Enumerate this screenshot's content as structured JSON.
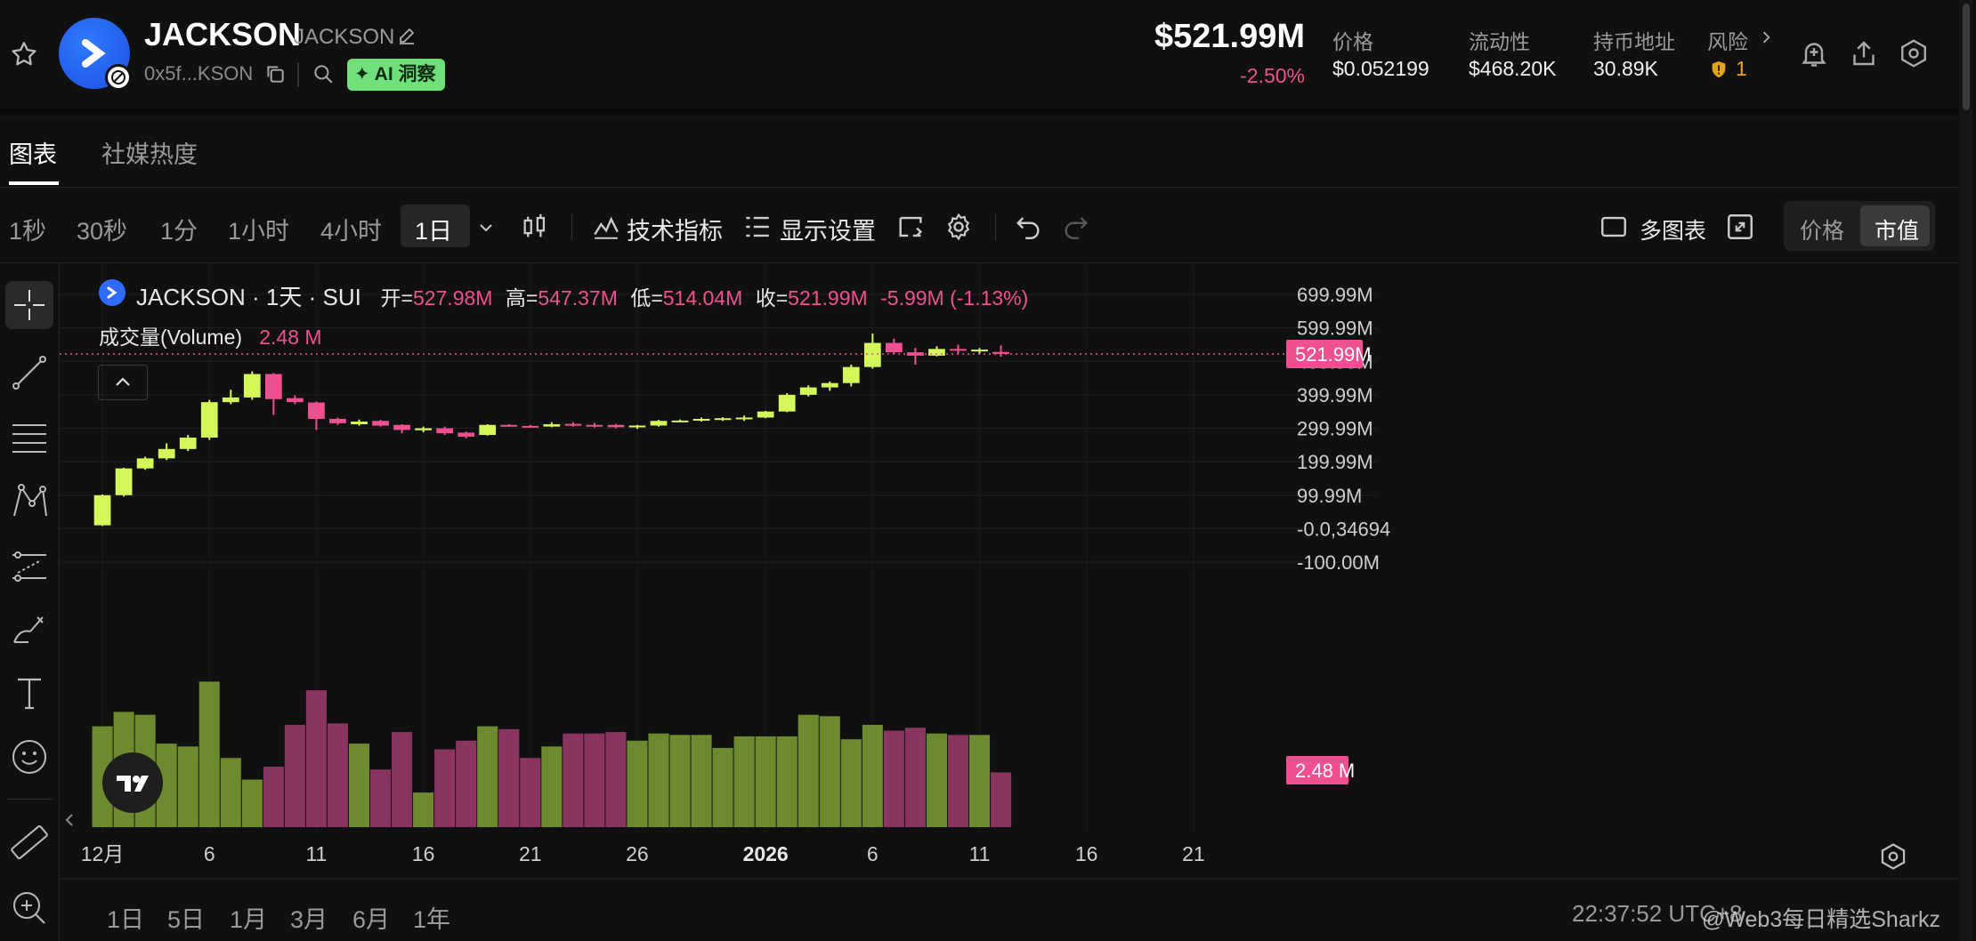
{
  "header": {
    "token_name": "JACKSON",
    "token_ticker": "JACKSON",
    "address": "0x5f...KSON",
    "ai_badge": "AI 洞察",
    "market_cap": "$521.99M",
    "market_cap_change": "-2.50%",
    "stats": [
      {
        "label": "价格",
        "value": "$0.052199"
      },
      {
        "label": "流动性",
        "value": "$468.20K"
      },
      {
        "label": "持币地址",
        "value": "30.89K"
      },
      {
        "label": "风险",
        "value": "1"
      }
    ]
  },
  "tabs": [
    {
      "label": "图表",
      "active": true
    },
    {
      "label": "社媒热度",
      "active": false
    }
  ],
  "toolbar": {
    "timeframes": [
      {
        "label": "1秒"
      },
      {
        "label": "30秒"
      },
      {
        "label": "1分"
      },
      {
        "label": "1小时"
      },
      {
        "label": "4小时"
      },
      {
        "label": "1日",
        "active": true
      }
    ],
    "indicators_label": "技术指标",
    "display_label": "显示设置",
    "multi_chart_label": "多图表",
    "price_toggle": "价格",
    "mcap_toggle": "市值"
  },
  "legend": {
    "title": "JACKSON · 1天 · SUI",
    "open_label": "开=",
    "open": "527.98M",
    "high_label": "高=",
    "high": "547.37M",
    "low_label": "低=",
    "low": "514.04M",
    "close_label": "收=",
    "close": "521.99M",
    "change": "-5.99M (-1.13%)",
    "volume_label": "成交量(Volume)",
    "volume": "2.48 M"
  },
  "colors": {
    "up": "#d4f75a",
    "down": "#f0508f",
    "vol_up": "#6e8a2e",
    "vol_down": "#8a3560"
  },
  "chart_data": {
    "type": "candlestick",
    "y_unit": "M",
    "ylim": [
      -120,
      760
    ],
    "y_ticks": [
      {
        "value": 699.99,
        "label": "699.99M"
      },
      {
        "value": 599.99,
        "label": "599.99M"
      },
      {
        "value": 499.99,
        "label": "499.99M"
      },
      {
        "value": 399.99,
        "label": "399.99M"
      },
      {
        "value": 299.99,
        "label": "299.99M"
      },
      {
        "value": 199.99,
        "label": "199.99M"
      },
      {
        "value": 99.99,
        "label": "99.99M"
      },
      {
        "value": -0.0,
        "label": "-0.0,34694"
      },
      {
        "value": -100,
        "label": "-100.00M"
      }
    ],
    "x_ticks": [
      {
        "day": 1,
        "label": "12月",
        "bold": false
      },
      {
        "day": 6,
        "label": "6",
        "bold": false
      },
      {
        "day": 11,
        "label": "11",
        "bold": false
      },
      {
        "day": 16,
        "label": "16",
        "bold": false
      },
      {
        "day": 21,
        "label": "21",
        "bold": false
      },
      {
        "day": 26,
        "label": "26",
        "bold": false
      },
      {
        "day": 32,
        "label": "2026",
        "bold": true
      },
      {
        "day": 37,
        "label": "6",
        "bold": false
      },
      {
        "day": 42,
        "label": "11",
        "bold": false
      },
      {
        "day": 47,
        "label": "16",
        "bold": false
      },
      {
        "day": 52,
        "label": "21",
        "bold": false
      }
    ],
    "x_range": [
      -1.0,
      56.0
    ],
    "last_price": 521.99,
    "last_price_label": "521.99M",
    "volume_label": "2.48 M",
    "volume_max": 100,
    "candles": [
      {
        "day": 1,
        "o": 10,
        "h": 102,
        "l": 8,
        "c": 100,
        "v": 70
      },
      {
        "day": 2,
        "o": 100,
        "h": 182,
        "l": 96,
        "c": 180,
        "v": 80
      },
      {
        "day": 3,
        "o": 180,
        "h": 215,
        "l": 176,
        "c": 210,
        "v": 78
      },
      {
        "day": 4,
        "o": 210,
        "h": 255,
        "l": 205,
        "c": 238,
        "v": 58
      },
      {
        "day": 5,
        "o": 238,
        "h": 280,
        "l": 232,
        "c": 272,
        "v": 56
      },
      {
        "day": 6,
        "o": 272,
        "h": 385,
        "l": 265,
        "c": 378,
        "v": 101
      },
      {
        "day": 7,
        "o": 378,
        "h": 415,
        "l": 372,
        "c": 392,
        "v": 48
      },
      {
        "day": 8,
        "o": 392,
        "h": 470,
        "l": 385,
        "c": 462,
        "v": 33
      },
      {
        "day": 9,
        "o": 462,
        "h": 465,
        "l": 340,
        "c": 387,
        "v": 42
      },
      {
        "day": 10,
        "o": 390,
        "h": 398,
        "l": 372,
        "c": 378,
        "v": 71
      },
      {
        "day": 11,
        "o": 377,
        "h": 380,
        "l": 295,
        "c": 328,
        "v": 95
      },
      {
        "day": 12,
        "o": 328,
        "h": 332,
        "l": 310,
        "c": 315,
        "v": 72
      },
      {
        "day": 13,
        "o": 312,
        "h": 326,
        "l": 308,
        "c": 320,
        "v": 58
      },
      {
        "day": 14,
        "o": 322,
        "h": 325,
        "l": 305,
        "c": 308,
        "v": 40
      },
      {
        "day": 15,
        "o": 310,
        "h": 312,
        "l": 285,
        "c": 295,
        "v": 66
      },
      {
        "day": 16,
        "o": 294,
        "h": 305,
        "l": 288,
        "c": 300,
        "v": 24
      },
      {
        "day": 17,
        "o": 300,
        "h": 305,
        "l": 280,
        "c": 285,
        "v": 54
      },
      {
        "day": 18,
        "o": 287,
        "h": 290,
        "l": 270,
        "c": 275,
        "v": 60
      },
      {
        "day": 19,
        "o": 280,
        "h": 312,
        "l": 278,
        "c": 310,
        "v": 70
      },
      {
        "day": 20,
        "o": 310,
        "h": 312,
        "l": 305,
        "c": 307,
        "v": 68
      },
      {
        "day": 21,
        "o": 307,
        "h": 310,
        "l": 302,
        "c": 305,
        "v": 48
      },
      {
        "day": 22,
        "o": 305,
        "h": 318,
        "l": 303,
        "c": 312,
        "v": 56
      },
      {
        "day": 23,
        "o": 313,
        "h": 318,
        "l": 305,
        "c": 309,
        "v": 65
      },
      {
        "day": 24,
        "o": 310,
        "h": 316,
        "l": 302,
        "c": 308,
        "v": 65
      },
      {
        "day": 25,
        "o": 310,
        "h": 313,
        "l": 300,
        "c": 303,
        "v": 66
      },
      {
        "day": 26,
        "o": 303,
        "h": 310,
        "l": 298,
        "c": 308,
        "v": 60
      },
      {
        "day": 27,
        "o": 308,
        "h": 325,
        "l": 305,
        "c": 322,
        "v": 65
      },
      {
        "day": 28,
        "o": 322,
        "h": 326,
        "l": 318,
        "c": 323,
        "v": 64
      },
      {
        "day": 29,
        "o": 323,
        "h": 332,
        "l": 320,
        "c": 328,
        "v": 64
      },
      {
        "day": 30,
        "o": 326,
        "h": 333,
        "l": 322,
        "c": 330,
        "v": 55
      },
      {
        "day": 31,
        "o": 328,
        "h": 338,
        "l": 322,
        "c": 332,
        "v": 63
      },
      {
        "day": 32,
        "o": 332,
        "h": 352,
        "l": 330,
        "c": 350,
        "v": 63
      },
      {
        "day": 33,
        "o": 350,
        "h": 405,
        "l": 348,
        "c": 400,
        "v": 63
      },
      {
        "day": 34,
        "o": 400,
        "h": 428,
        "l": 395,
        "c": 422,
        "v": 78
      },
      {
        "day": 35,
        "o": 422,
        "h": 440,
        "l": 412,
        "c": 435,
        "v": 77
      },
      {
        "day": 36,
        "o": 435,
        "h": 490,
        "l": 425,
        "c": 483,
        "v": 61
      },
      {
        "day": 37,
        "o": 483,
        "h": 583,
        "l": 478,
        "c": 555,
        "v": 71
      },
      {
        "day": 38,
        "o": 555,
        "h": 568,
        "l": 522,
        "c": 527,
        "v": 67
      },
      {
        "day": 39,
        "o": 527,
        "h": 540,
        "l": 490,
        "c": 517,
        "v": 69
      },
      {
        "day": 40,
        "o": 517,
        "h": 545,
        "l": 515,
        "c": 537,
        "v": 65
      },
      {
        "day": 41,
        "o": 537,
        "h": 550,
        "l": 523,
        "c": 533,
        "v": 64
      },
      {
        "day": 42,
        "o": 532,
        "h": 540,
        "l": 522,
        "c": 535,
        "v": 64
      },
      {
        "day": 43,
        "o": 527.98,
        "h": 547.37,
        "l": 514.04,
        "c": 521.99,
        "v": 38
      }
    ]
  },
  "bottom": {
    "ranges": [
      "1日",
      "5日",
      "1月",
      "3月",
      "6月",
      "1年"
    ],
    "time": "22:37:52 UTC+8",
    "watermark": "@Web3每日精选Sharkz"
  }
}
